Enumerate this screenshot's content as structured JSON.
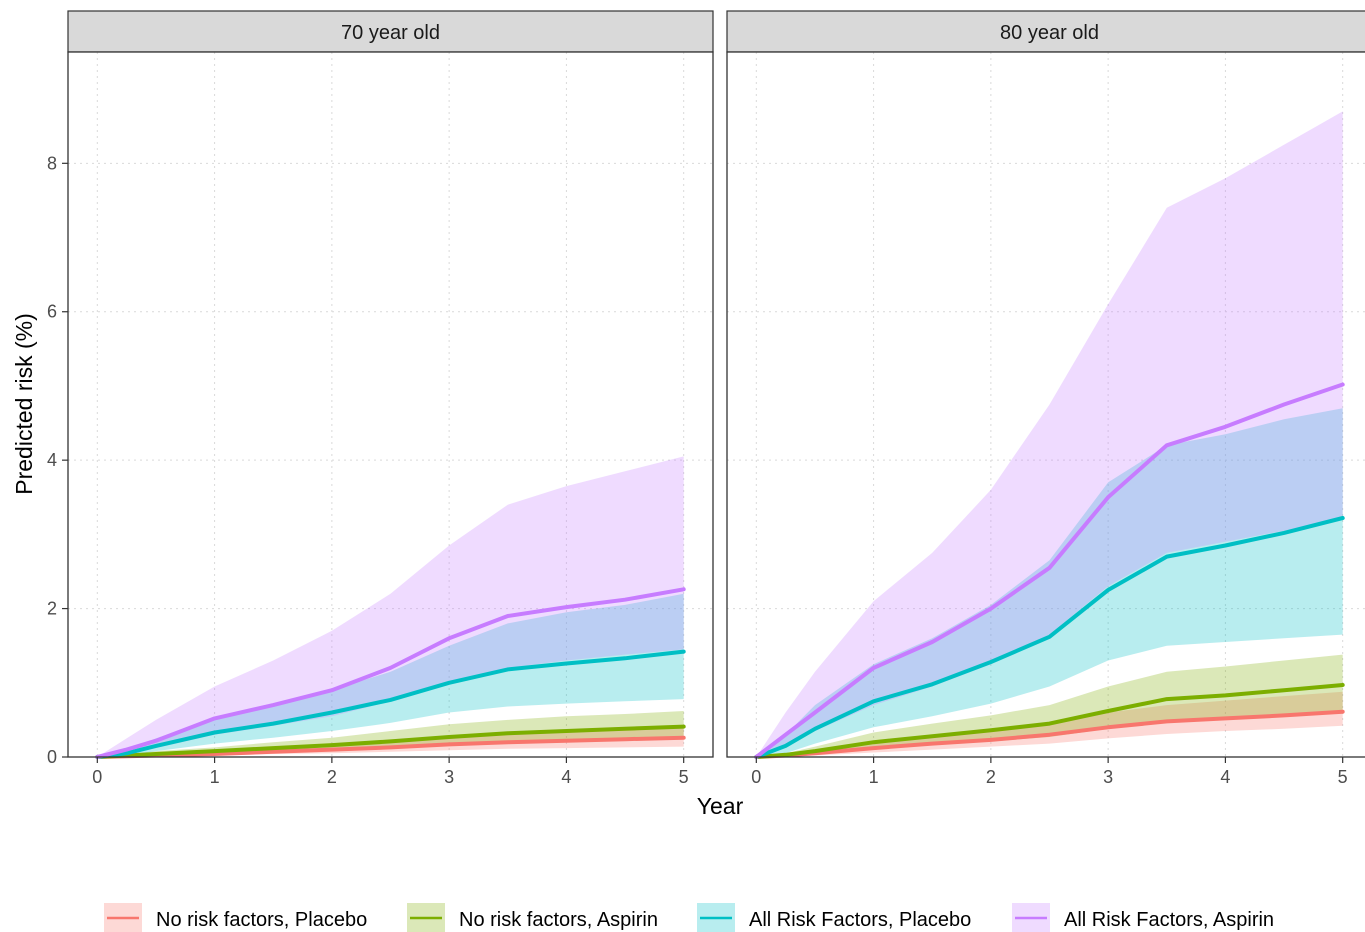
{
  "chart_data": {
    "type": "line",
    "xlabel": "Year",
    "ylabel": "Predicted risk (%)",
    "xlim": [
      -0.25,
      5.25
    ],
    "ylim": [
      0,
      9.5
    ],
    "xticks": [
      "0",
      "1",
      "2",
      "3",
      "4",
      "5"
    ],
    "yticks": [
      "0",
      "2",
      "4",
      "6",
      "8"
    ],
    "grid": true,
    "legend_position": "bottom",
    "legend": [
      {
        "label": "No risk factors, Placebo",
        "color": "#F8766D"
      },
      {
        "label": "No risk factors, Aspirin",
        "color": "#7CAE00"
      },
      {
        "label": "All Risk Factors, Placebo",
        "color": "#00BFC4"
      },
      {
        "label": "All Risk Factors, Aspirin",
        "color": "#C77CFF"
      }
    ],
    "x": [
      0,
      0.25,
      0.5,
      1,
      1.5,
      2,
      2.5,
      3,
      3.5,
      4,
      4.5,
      5
    ],
    "panels": [
      {
        "title": "70 year old",
        "series": [
          {
            "name": "No risk factors, Placebo",
            "color": "#F8766D",
            "values": [
              0,
              0.01,
              0.02,
              0.04,
              0.07,
              0.1,
              0.13,
              0.17,
              0.2,
              0.22,
              0.24,
              0.26
            ],
            "lower": [
              0,
              0,
              0.01,
              0.02,
              0.04,
              0.05,
              0.07,
              0.09,
              0.11,
              0.12,
              0.13,
              0.14
            ],
            "upper": [
              0,
              0.02,
              0.04,
              0.08,
              0.12,
              0.17,
              0.22,
              0.28,
              0.32,
              0.35,
              0.38,
              0.4
            ]
          },
          {
            "name": "No risk factors, Aspirin",
            "color": "#7CAE00",
            "values": [
              0,
              0.02,
              0.04,
              0.08,
              0.12,
              0.16,
              0.21,
              0.27,
              0.32,
              0.35,
              0.38,
              0.41
            ],
            "lower": [
              0,
              0.01,
              0.02,
              0.04,
              0.07,
              0.1,
              0.13,
              0.16,
              0.19,
              0.21,
              0.22,
              0.24
            ],
            "upper": [
              0,
              0.04,
              0.08,
              0.13,
              0.2,
              0.26,
              0.35,
              0.44,
              0.5,
              0.55,
              0.58,
              0.62
            ]
          },
          {
            "name": "All Risk Factors, Placebo",
            "color": "#00BFC4",
            "values": [
              0,
              0.05,
              0.15,
              0.33,
              0.45,
              0.6,
              0.77,
              1.0,
              1.18,
              1.26,
              1.33,
              1.42
            ],
            "lower": [
              0,
              0.02,
              0.08,
              0.18,
              0.26,
              0.35,
              0.46,
              0.6,
              0.68,
              0.72,
              0.75,
              0.78
            ],
            "upper": [
              0,
              0.09,
              0.25,
              0.53,
              0.7,
              0.9,
              1.15,
              1.5,
              1.8,
              1.95,
              2.05,
              2.2
            ]
          },
          {
            "name": "All Risk Factors, Aspirin",
            "color": "#C77CFF",
            "values": [
              0,
              0.1,
              0.22,
              0.52,
              0.7,
              0.9,
              1.2,
              1.6,
              1.9,
              2.02,
              2.12,
              2.26
            ],
            "lower": [
              0,
              0.05,
              0.12,
              0.3,
              0.42,
              0.55,
              0.75,
              1.0,
              1.2,
              1.3,
              1.38,
              1.45
            ],
            "upper": [
              0,
              0.25,
              0.5,
              0.95,
              1.3,
              1.7,
              2.2,
              2.85,
              3.4,
              3.65,
              3.85,
              4.05
            ]
          }
        ]
      },
      {
        "title": "80 year old",
        "series": [
          {
            "name": "No risk factors, Placebo",
            "color": "#F8766D",
            "values": [
              0,
              0.02,
              0.05,
              0.12,
              0.18,
              0.23,
              0.3,
              0.4,
              0.48,
              0.52,
              0.56,
              0.61
            ],
            "lower": [
              0,
              0.01,
              0.02,
              0.06,
              0.1,
              0.14,
              0.18,
              0.25,
              0.31,
              0.35,
              0.38,
              0.42
            ],
            "upper": [
              0,
              0.04,
              0.09,
              0.2,
              0.28,
              0.36,
              0.46,
              0.6,
              0.7,
              0.76,
              0.82,
              0.88
            ]
          },
          {
            "name": "No risk factors, Aspirin",
            "color": "#7CAE00",
            "values": [
              0,
              0.03,
              0.08,
              0.2,
              0.28,
              0.36,
              0.45,
              0.62,
              0.78,
              0.83,
              0.9,
              0.97
            ],
            "lower": [
              0,
              0.01,
              0.04,
              0.11,
              0.16,
              0.21,
              0.27,
              0.38,
              0.48,
              0.53,
              0.58,
              0.63
            ],
            "upper": [
              0,
              0.05,
              0.14,
              0.33,
              0.45,
              0.56,
              0.7,
              0.95,
              1.15,
              1.22,
              1.3,
              1.38
            ]
          },
          {
            "name": "All Risk Factors, Placebo",
            "color": "#00BFC4",
            "values": [
              0,
              0.15,
              0.38,
              0.75,
              0.98,
              1.28,
              1.62,
              2.25,
              2.7,
              2.85,
              3.02,
              3.22
            ],
            "lower": [
              0,
              0.05,
              0.18,
              0.4,
              0.55,
              0.72,
              0.95,
              1.3,
              1.5,
              1.55,
              1.6,
              1.65
            ],
            "upper": [
              0,
              0.3,
              0.7,
              1.25,
              1.6,
              2.05,
              2.65,
              3.7,
              4.2,
              4.35,
              4.55,
              4.7
            ]
          },
          {
            "name": "All Risk Factors, Aspirin",
            "color": "#C77CFF",
            "values": [
              0,
              0.3,
              0.6,
              1.2,
              1.55,
              2.0,
              2.55,
              3.5,
              4.2,
              4.45,
              4.75,
              5.02
            ],
            "lower": [
              0,
              0.15,
              0.35,
              0.7,
              0.95,
              1.25,
              1.65,
              2.3,
              2.75,
              2.9,
              3.05,
              3.2
            ],
            "upper": [
              0,
              0.6,
              1.15,
              2.1,
              2.75,
              3.6,
              4.75,
              6.1,
              7.4,
              7.8,
              8.25,
              8.7
            ]
          }
        ]
      }
    ]
  }
}
